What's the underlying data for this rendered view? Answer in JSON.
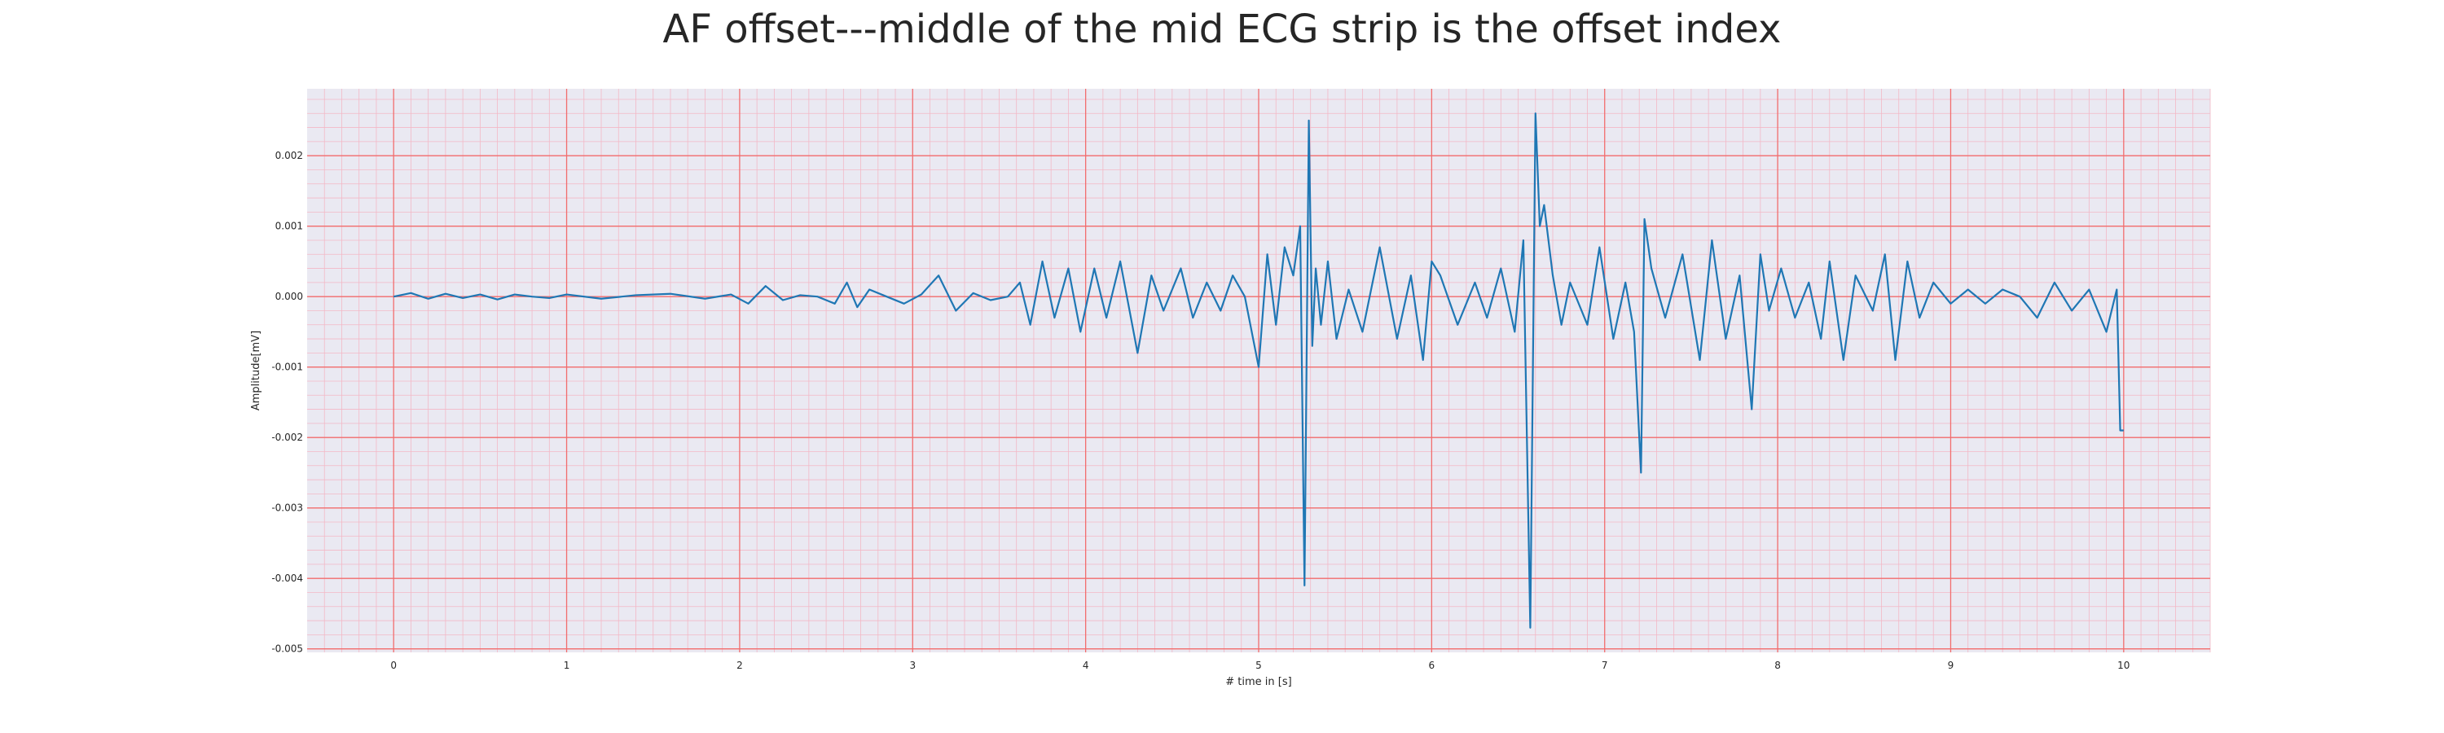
{
  "chart_data": {
    "type": "line",
    "title": "AF offset---middle of the mid ECG strip is the offset index",
    "xlabel": "# time in [s]",
    "ylabel": "Amplitude[mV]",
    "xlim": [
      -0.5,
      10.5
    ],
    "ylim": [
      -0.00505,
      0.00295
    ],
    "grid": "on",
    "colors": {
      "plot_background": "#eae9f2",
      "major_grid": "#f26d6d",
      "minor_grid": "#f3b8c6",
      "line": "#1f77b4"
    },
    "x_ticks": [
      {
        "value": 0,
        "label": "0"
      },
      {
        "value": 1,
        "label": "1"
      },
      {
        "value": 2,
        "label": "2"
      },
      {
        "value": 3,
        "label": "3"
      },
      {
        "value": 4,
        "label": "4"
      },
      {
        "value": 5,
        "label": "5"
      },
      {
        "value": 6,
        "label": "6"
      },
      {
        "value": 7,
        "label": "7"
      },
      {
        "value": 8,
        "label": "8"
      },
      {
        "value": 9,
        "label": "9"
      },
      {
        "value": 10,
        "label": "10"
      }
    ],
    "y_ticks": [
      {
        "value": 0.002,
        "label": "0.002"
      },
      {
        "value": 0.001,
        "label": "0.001"
      },
      {
        "value": 0.0,
        "label": "0.000"
      },
      {
        "value": -0.001,
        "label": "-0.001"
      },
      {
        "value": -0.002,
        "label": "-0.002"
      },
      {
        "value": -0.003,
        "label": "-0.003"
      },
      {
        "value": -0.004,
        "label": "-0.004"
      },
      {
        "value": -0.005,
        "label": "-0.005"
      }
    ],
    "series": [
      {
        "x": [
          0.0,
          0.1,
          0.2,
          0.3,
          0.4,
          0.5,
          0.6,
          0.7,
          0.8,
          0.9,
          1.0,
          1.2,
          1.4,
          1.6,
          1.8,
          1.95,
          2.05,
          2.15,
          2.25,
          2.35,
          2.45,
          2.55,
          2.62,
          2.68,
          2.75,
          2.85,
          2.95,
          3.05,
          3.15,
          3.25,
          3.35,
          3.45,
          3.55,
          3.62,
          3.68,
          3.75,
          3.82,
          3.9,
          3.97,
          4.05,
          4.12,
          4.2,
          4.3,
          4.38,
          4.45,
          4.55,
          4.62,
          4.7,
          4.78,
          4.85,
          4.92,
          5.0,
          5.05,
          5.1,
          5.15,
          5.2,
          5.24,
          5.265,
          5.29,
          5.31,
          5.33,
          5.36,
          5.4,
          5.45,
          5.52,
          5.6,
          5.7,
          5.8,
          5.88,
          5.95,
          6.0,
          6.05,
          6.15,
          6.25,
          6.32,
          6.4,
          6.48,
          6.53,
          6.57,
          6.6,
          6.625,
          6.65,
          6.7,
          6.75,
          6.8,
          6.9,
          6.97,
          7.05,
          7.12,
          7.17,
          7.21,
          7.23,
          7.27,
          7.35,
          7.45,
          7.55,
          7.62,
          7.7,
          7.78,
          7.85,
          7.9,
          7.95,
          8.02,
          8.1,
          8.18,
          8.25,
          8.3,
          8.38,
          8.45,
          8.55,
          8.62,
          8.68,
          8.75,
          8.82,
          8.9,
          9.0,
          9.1,
          9.2,
          9.3,
          9.4,
          9.5,
          9.6,
          9.7,
          9.8,
          9.9,
          9.96,
          9.98,
          10.0
        ],
        "y": [
          0.0,
          5e-05,
          -3e-05,
          4e-05,
          -2e-05,
          3e-05,
          -4e-05,
          3e-05,
          0.0,
          -2e-05,
          3e-05,
          -3e-05,
          2e-05,
          4e-05,
          -3e-05,
          3e-05,
          -0.0001,
          0.00015,
          -5e-05,
          2e-05,
          0.0,
          -0.0001,
          0.0002,
          -0.00015,
          0.0001,
          0.0,
          -0.0001,
          3e-05,
          0.0003,
          -0.0002,
          5e-05,
          -5e-05,
          0.0,
          0.0002,
          -0.0004,
          0.0005,
          -0.0003,
          0.0004,
          -0.0005,
          0.0004,
          -0.0003,
          0.0005,
          -0.0008,
          0.0003,
          -0.0002,
          0.0004,
          -0.0003,
          0.0002,
          -0.0002,
          0.0003,
          0.0,
          -0.001,
          0.0006,
          -0.0004,
          0.0007,
          0.0003,
          0.001,
          -0.0041,
          0.0025,
          -0.0007,
          0.0004,
          -0.0004,
          0.0005,
          -0.0006,
          0.0001,
          -0.0005,
          0.0007,
          -0.0006,
          0.0003,
          -0.0009,
          0.0005,
          0.0003,
          -0.0004,
          0.0002,
          -0.0003,
          0.0004,
          -0.0005,
          0.0008,
          -0.0047,
          0.0026,
          0.001,
          0.0013,
          0.0003,
          -0.0004,
          0.0002,
          -0.0004,
          0.0007,
          -0.0006,
          0.0002,
          -0.0005,
          -0.0025,
          0.0011,
          0.0004,
          -0.0003,
          0.0006,
          -0.0009,
          0.0008,
          -0.0006,
          0.0003,
          -0.0016,
          0.0006,
          -0.0002,
          0.0004,
          -0.0003,
          0.0002,
          -0.0006,
          0.0005,
          -0.0009,
          0.0003,
          -0.0002,
          0.0006,
          -0.0009,
          0.0005,
          -0.0003,
          0.0002,
          -0.0001,
          0.0001,
          -0.0001,
          0.0001,
          0.0,
          -0.0003,
          0.0002,
          -0.0002,
          0.0001,
          -0.0005,
          0.0001,
          -0.0019,
          -0.0019
        ]
      }
    ]
  }
}
